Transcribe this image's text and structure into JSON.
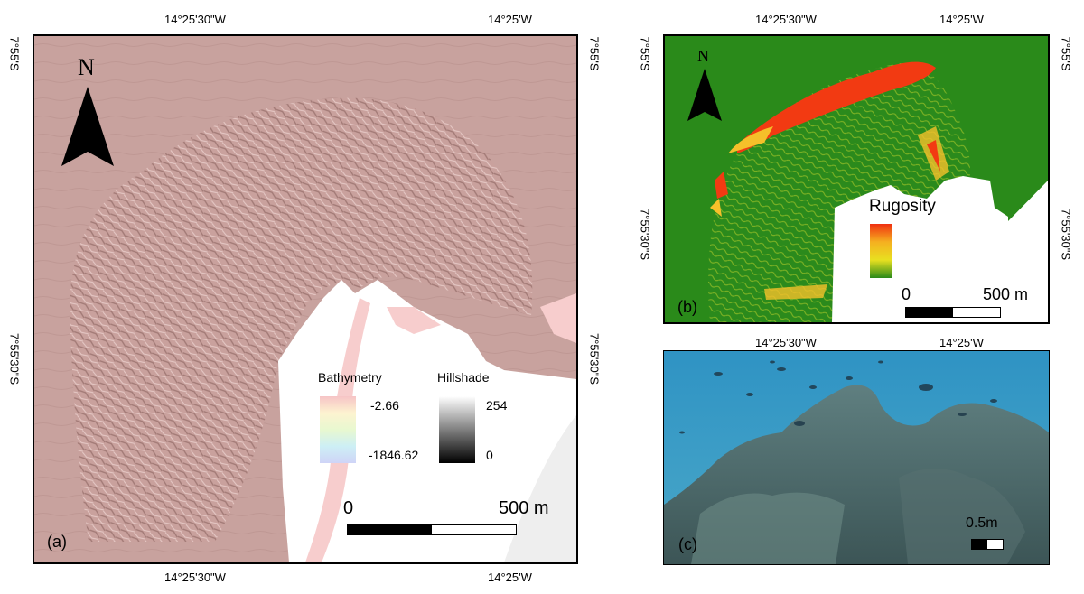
{
  "panel_a": {
    "label": "(a)",
    "north_label": "N",
    "top_ticks": [
      "14°25'30\"W",
      "14°25'W"
    ],
    "bottom_ticks": [
      "14°25'30\"W",
      "14°25'W"
    ],
    "left_ticks": [
      "7°55'S",
      "7°55'30\"S"
    ],
    "right_ticks": [
      "7°55'S",
      "7°55'30\"S"
    ],
    "legend": {
      "bathymetry_title": "Bathymetry",
      "bathymetry_max": "-2.66",
      "bathymetry_min": "-1846.62",
      "hillshade_title": "Hillshade",
      "hillshade_max": "254",
      "hillshade_min": "0"
    },
    "scale_start": "0",
    "scale_end": "500 m",
    "colors": {
      "terrain": "#c79f9b",
      "bathy_high": "#f7c6c6"
    }
  },
  "panel_b": {
    "label": "(b)",
    "north_label": "N",
    "top_ticks": [
      "14°25'30\"W",
      "14°25'W"
    ],
    "bottom_ticks": [
      "14°25'30\"W",
      "14°25'W"
    ],
    "left_ticks": [
      "7°55'S",
      "7°55'30\"S"
    ],
    "right_ticks": [
      "7°55'S",
      "7°55'30\"S"
    ],
    "legend_title": "Rugosity",
    "scale_start": "0",
    "scale_end": "500 m",
    "colors": {
      "low": "#2a8a1a",
      "mid": "#e8e020",
      "high": "#f03010"
    }
  },
  "panel_c": {
    "label": "(c)",
    "scale_label": "0.5m",
    "colors": {
      "water": "#2f8fb8",
      "reef": "#4f6b6e"
    }
  }
}
